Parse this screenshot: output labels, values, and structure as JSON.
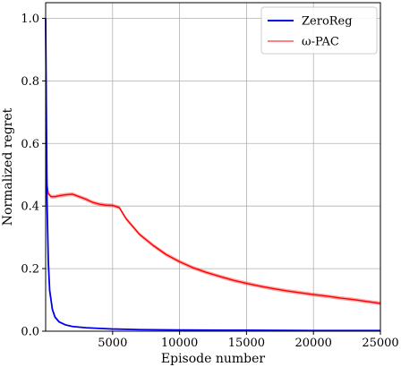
{
  "chart_data": {
    "type": "line",
    "title": "",
    "xlabel": "Episode number",
    "ylabel": "Normalized regret",
    "xlim": [
      0,
      25000
    ],
    "ylim": [
      0,
      1.05
    ],
    "xticks": [
      5000,
      10000,
      15000,
      20000,
      25000
    ],
    "yticks": [
      0.0,
      0.2,
      0.4,
      0.6,
      0.8,
      1.0
    ],
    "xtick_labels": [
      "5000",
      "10000",
      "15000",
      "20000",
      "25000"
    ],
    "ytick_labels": [
      "0.0",
      "0.2",
      "0.4",
      "0.6",
      "0.8",
      "1.0"
    ],
    "grid": true,
    "legend_position": "top-right",
    "series": [
      {
        "name": "ZeroReg",
        "color": "#0000ee",
        "x": [
          0,
          100,
          200,
          300,
          500,
          700,
          1000,
          1500,
          2000,
          3000,
          4000,
          5000,
          7000,
          10000,
          15000,
          20000,
          25000
        ],
        "y": [
          1.0,
          0.42,
          0.22,
          0.13,
          0.07,
          0.045,
          0.03,
          0.02,
          0.015,
          0.011,
          0.009,
          0.007,
          0.005,
          0.004,
          0.003,
          0.002,
          0.002
        ]
      },
      {
        "name": "ω-PAC",
        "color": "#ff0000",
        "x": [
          0,
          50,
          100,
          200,
          400,
          700,
          1000,
          1500,
          2000,
          2500,
          3000,
          3500,
          4000,
          4500,
          5000,
          5500,
          6000,
          6500,
          7000,
          8000,
          9000,
          10000,
          11000,
          12000,
          13000,
          14000,
          15000,
          16000,
          17000,
          18000,
          19000,
          20000,
          21000,
          22000,
          23000,
          24000,
          25000
        ],
        "y": [
          1.0,
          0.6,
          0.47,
          0.44,
          0.43,
          0.43,
          0.433,
          0.436,
          0.438,
          0.43,
          0.422,
          0.412,
          0.406,
          0.403,
          0.402,
          0.395,
          0.36,
          0.335,
          0.31,
          0.275,
          0.245,
          0.222,
          0.203,
          0.188,
          0.175,
          0.163,
          0.153,
          0.144,
          0.136,
          0.129,
          0.123,
          0.117,
          0.112,
          0.106,
          0.101,
          0.095,
          0.089
        ]
      }
    ]
  }
}
